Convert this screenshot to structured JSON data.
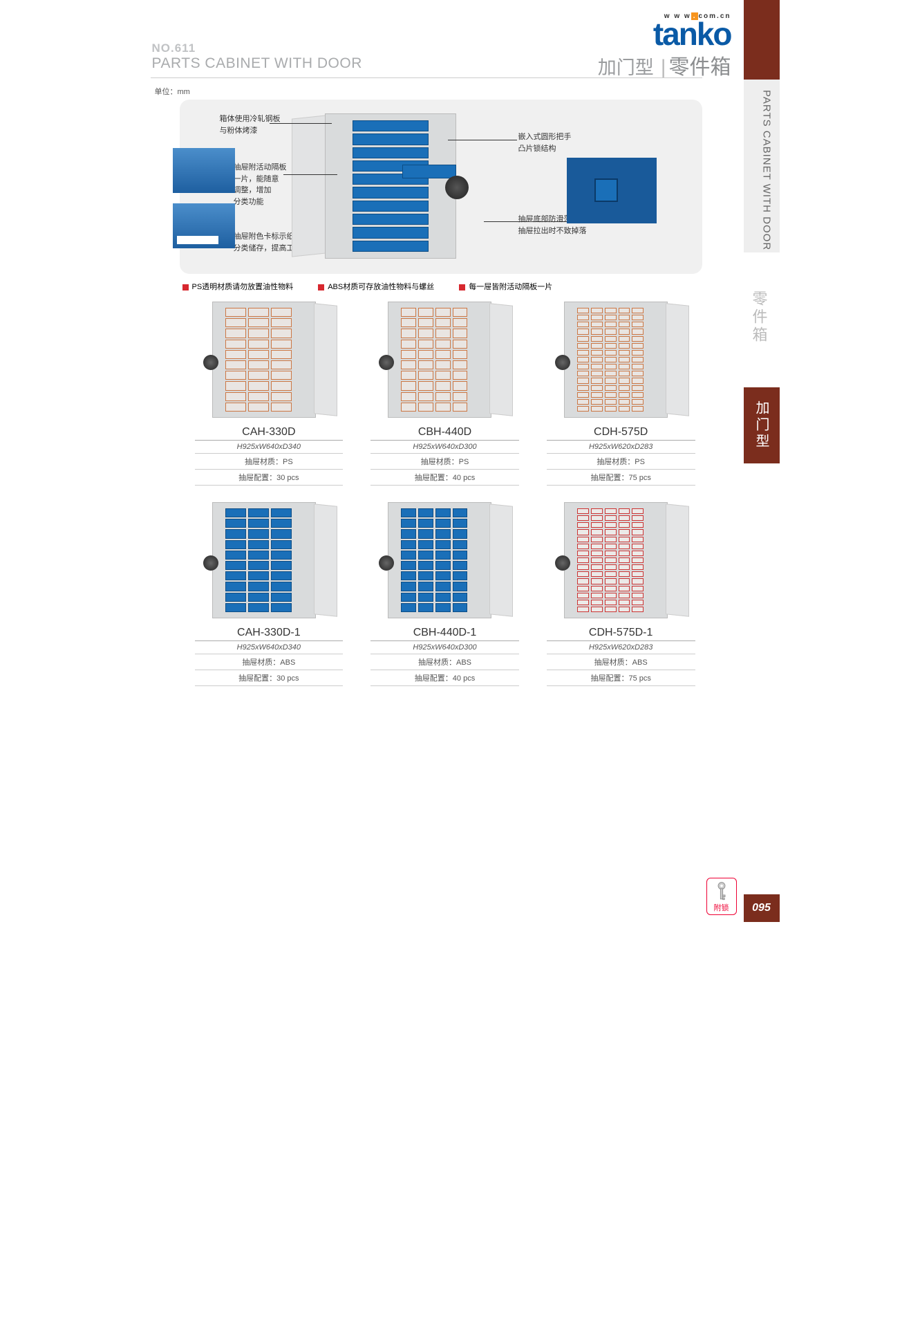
{
  "header": {
    "no": "NO.611",
    "title_en": "PARTS CABINET WITH DOOR",
    "title_cn_sub": "加门型",
    "title_cn_main": "零件箱",
    "no_color": "#c0c2c4",
    "title_en_color": "#a9abad",
    "cn_sub_color": "#9a9c9e",
    "cn_main_color": "#8b8d8f"
  },
  "logo": {
    "name": "tanko",
    "url_pre": "w w w",
    "url_dot": ".",
    "url_suf": "com.cn",
    "name_color": "#0a5aa6",
    "dot_color": "#f7941d"
  },
  "unit_label": "单位：mm",
  "sidebar": {
    "vert_en": "PARTS CABINET WITH DOOR",
    "cn_gray": "零件箱",
    "cn_brown": "加门型",
    "page_num": "095",
    "brown": "#7b2d1d"
  },
  "feature": {
    "bg": "#f0f0f0",
    "callouts": {
      "c1": "箱体使用冷轧钢板\n与粉体烤漆",
      "c2": "抽屉附活动隔板\n一片，能随意\n调整，增加\n分类功能",
      "c3": "抽屉附色卡标示纸，\n分类储存，提高工作效率。",
      "c4": "嵌入式圆形把手\n凸片锁结构",
      "c5": "抽屉底部防滑落设计，\n抽屉拉出时不致掉落"
    },
    "drawer_color": "#1a6fb8",
    "cabinet_color": "#d9dbdc"
  },
  "notes": [
    "PS透明材质请勿放置油性物料",
    "ABS材质可存放油性物料与螺丝",
    "每一屉皆附活动隔板一片"
  ],
  "note_bullet_color": "#d7282f",
  "products": [
    {
      "model": "CAH-330D",
      "dims": "H925xW640xD340",
      "mat": "抽屉材质：PS",
      "cfg": "抽屉配置：30 pcs",
      "cols": 3,
      "rows": 10,
      "drawer_color": "#e9e5e2",
      "accent": "#c74"
    },
    {
      "model": "CBH-440D",
      "dims": "H925xW640xD300",
      "mat": "抽屉材质：PS",
      "cfg": "抽屉配置：40 pcs",
      "cols": 4,
      "rows": 10,
      "drawer_color": "#e9e5e2",
      "accent": "#c74"
    },
    {
      "model": "CDH-575D",
      "dims": "H925xW620xD283",
      "mat": "抽屉材质：PS",
      "cfg": "抽屉配置：75 pcs",
      "cols": 5,
      "rows": 15,
      "drawer_color": "#e9e5e2",
      "accent": "#c74"
    },
    {
      "model": "CAH-330D-1",
      "dims": "H925xW640xD340",
      "mat": "抽屉材质：ABS",
      "cfg": "抽屉配置：30 pcs",
      "cols": 3,
      "rows": 10,
      "drawer_color": "#1a6fb8",
      "accent": "#0d4d85"
    },
    {
      "model": "CBH-440D-1",
      "dims": "H925xW640xD300",
      "mat": "抽屉材质：ABS",
      "cfg": "抽屉配置：40 pcs",
      "cols": 4,
      "rows": 10,
      "drawer_color": "#1a6fb8",
      "accent": "#0d4d85"
    },
    {
      "model": "CDH-575D-1",
      "dims": "H925xW620xD283",
      "mat": "抽屉材质：ABS",
      "cfg": "抽屉配置：75 pcs",
      "cols": 5,
      "rows": 15,
      "drawer_color": "#eceae8",
      "accent": "#c33"
    }
  ],
  "lock_badge": "附锁"
}
